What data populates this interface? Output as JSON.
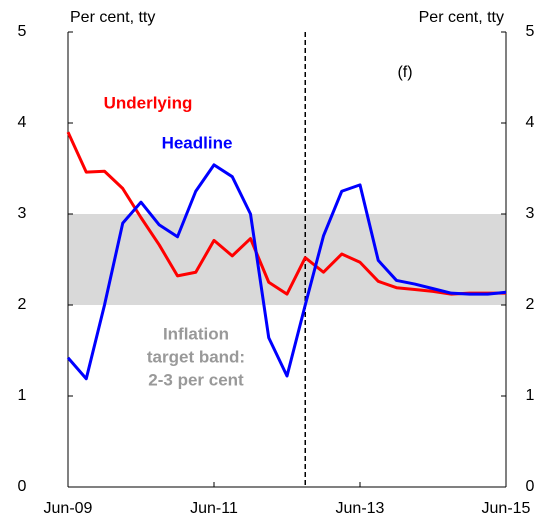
{
  "chart_data": {
    "type": "line",
    "categories": [
      "Jun-09",
      null,
      null,
      null,
      null,
      null,
      null,
      null,
      "Jun-11",
      null,
      null,
      null,
      null,
      null,
      null,
      null,
      "Jun-13",
      null,
      null,
      null,
      null,
      null,
      null,
      null,
      "Jun-15"
    ],
    "series": [
      {
        "name": "Underlying",
        "color": "#ff0000",
        "values": [
          3.9,
          3.46,
          3.47,
          3.28,
          2.96,
          2.66,
          2.32,
          2.36,
          2.71,
          2.54,
          2.73,
          2.25,
          2.12,
          2.52,
          2.36,
          2.56,
          2.47,
          2.26,
          2.19,
          2.17,
          2.15,
          2.12,
          2.13,
          2.13,
          2.13
        ]
      },
      {
        "name": "Headline",
        "color": "#0000ff",
        "values": [
          1.42,
          1.19,
          2.0,
          2.9,
          3.13,
          2.88,
          2.75,
          3.25,
          3.54,
          3.41,
          3.0,
          1.64,
          1.22,
          2.0,
          2.76,
          3.25,
          3.32,
          2.49,
          2.27,
          2.23,
          2.18,
          2.13,
          2.12,
          2.12,
          2.14
        ]
      }
    ],
    "ylim": [
      0,
      5
    ],
    "yticks": [
      0,
      1,
      2,
      3,
      4,
      5
    ],
    "y2lim": [
      0,
      5
    ],
    "y2ticks": [
      0,
      1,
      2,
      3,
      4,
      5
    ],
    "y_label": "Per cent, tty",
    "y2_label": "Per cent, tty",
    "band": [
      2,
      3
    ],
    "band_color": "#d9d9d9",
    "band_label": [
      "Inflation",
      "target band:",
      "2-3 per cent"
    ],
    "forecast_start_index": 13,
    "forecast_label": "(f)"
  }
}
